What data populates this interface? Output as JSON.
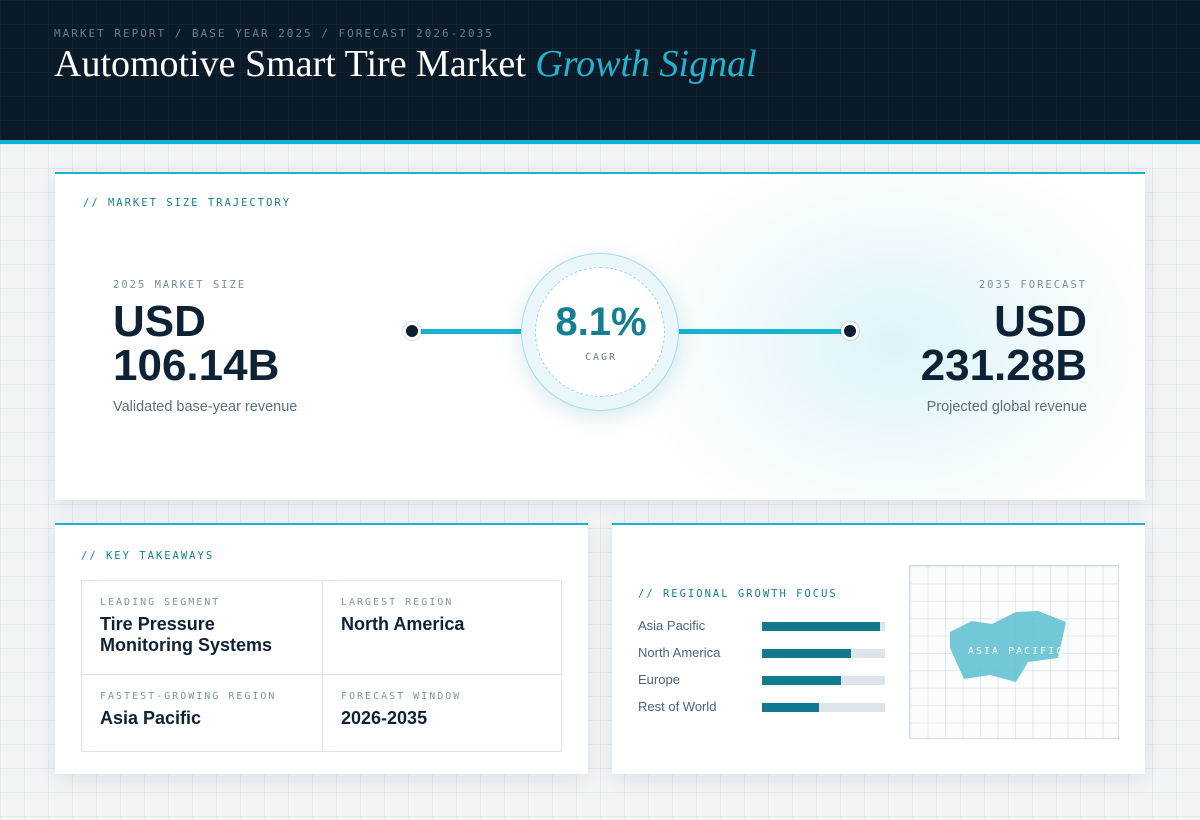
{
  "header": {
    "breadcrumb": "MARKET REPORT / BASE YEAR 2025 / FORECAST 2026-2035",
    "title_main": "Automotive Smart Tire Market",
    "title_accent": "Growth Signal"
  },
  "trajectory": {
    "section_label": "// MARKET SIZE TRAJECTORY",
    "start": {
      "caption": "2025 MARKET SIZE",
      "currency": "USD",
      "value": "106.14B",
      "sub": "Validated base-year revenue"
    },
    "cagr": {
      "value": "8.1%",
      "label": "CAGR"
    },
    "end": {
      "caption": "2035 FORECAST",
      "currency": "USD",
      "value": "231.28B",
      "sub": "Projected global revenue"
    }
  },
  "takeaways": {
    "section_label": "// KEY TAKEAWAYS",
    "items": [
      {
        "label": "LEADING SEGMENT",
        "value": "Tire Pressure Monitoring Systems"
      },
      {
        "label": "LARGEST REGION",
        "value": "North America"
      },
      {
        "label": "FASTEST-GROWING REGION",
        "value": "Asia Pacific"
      },
      {
        "label": "FORECAST WINDOW",
        "value": "2026-2035"
      }
    ]
  },
  "regional": {
    "section_label": "// REGIONAL GROWTH FOCUS",
    "bars": [
      {
        "label": "Asia Pacific",
        "level": 0.96
      },
      {
        "label": "North America",
        "level": 0.72
      },
      {
        "label": "Europe",
        "level": 0.64
      },
      {
        "label": "Rest of World",
        "level": 0.46
      }
    ],
    "map_label": "ASIA PACIFIC"
  },
  "colors": {
    "header_bg": "#0b1a28",
    "accent": "#22b4cf",
    "accent_dark": "#117b8d",
    "text_dark": "#0e2236"
  }
}
